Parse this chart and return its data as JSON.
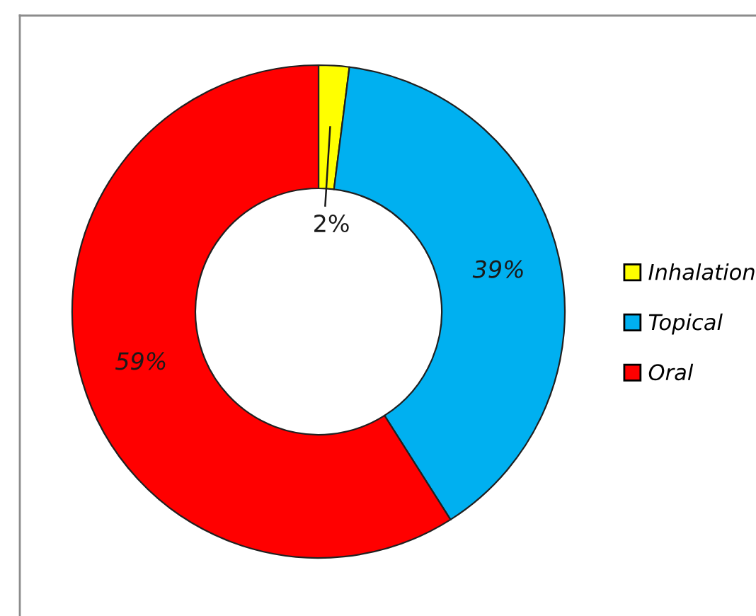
{
  "chart_data": {
    "type": "donut",
    "categories": [
      "Inhalation",
      "Topical",
      "Oral"
    ],
    "values": [
      2,
      39,
      59
    ],
    "colors": [
      "#ffff00",
      "#00b0f0",
      "#ff0000"
    ],
    "value_labels": [
      "2%",
      "39%",
      "59%"
    ],
    "legend": "right"
  }
}
